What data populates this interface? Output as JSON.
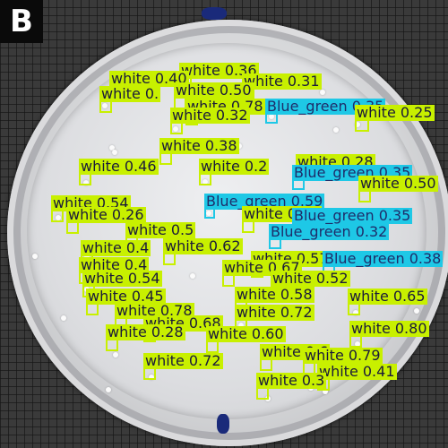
{
  "panel_label": "B",
  "colors": {
    "white_class": "#c8f000",
    "blue_green_class": "#1ec8e6",
    "label_text": "#1a1a3a"
  },
  "detections": [
    {
      "label": "white 0.36"
    },
    {
      "label": "white 0.40"
    },
    {
      "label": "white 0.31"
    },
    {
      "label": "white 0."
    },
    {
      "label": "white 0.50"
    },
    {
      "label": "white 0.78"
    },
    {
      "label": "white 0.32"
    },
    {
      "label": "Blue_green 0.35"
    },
    {
      "label": "white 0.25"
    },
    {
      "label": "white 0.38"
    },
    {
      "label": "white 0.28"
    },
    {
      "label": "white 0.46"
    },
    {
      "label": "white 0.2"
    },
    {
      "label": "Blue_green 0.35"
    },
    {
      "label": "white 0.50"
    },
    {
      "label": "Blue_green 0.59"
    },
    {
      "label": "white 0.54"
    },
    {
      "label": "white 0.26"
    },
    {
      "label": "white 0.5"
    },
    {
      "label": "white 0.53"
    },
    {
      "label": "Blue_green 0.35"
    },
    {
      "label": "Blue_green 0.32"
    },
    {
      "label": "white 0.4"
    },
    {
      "label": "white 0.62"
    },
    {
      "label": "white 0.57"
    },
    {
      "label": "Blue_green 0.38"
    },
    {
      "label": "white 0.4"
    },
    {
      "label": "white 0.67"
    },
    {
      "label": "white 0.54"
    },
    {
      "label": "white 0.52"
    },
    {
      "label": "white 0.45"
    },
    {
      "label": "white 0.58"
    },
    {
      "label": "white 0.65"
    },
    {
      "label": "white 0.72"
    },
    {
      "label": "white 0.78"
    },
    {
      "label": "white 0.68"
    },
    {
      "label": "white 0.60"
    },
    {
      "label": "white 0.28"
    },
    {
      "label": "white 0.80"
    },
    {
      "label": "white 0.6"
    },
    {
      "label": "white 0.79"
    },
    {
      "label": "white 0.72"
    },
    {
      "label": "white 0.41"
    },
    {
      "label": "white 0.3"
    }
  ]
}
